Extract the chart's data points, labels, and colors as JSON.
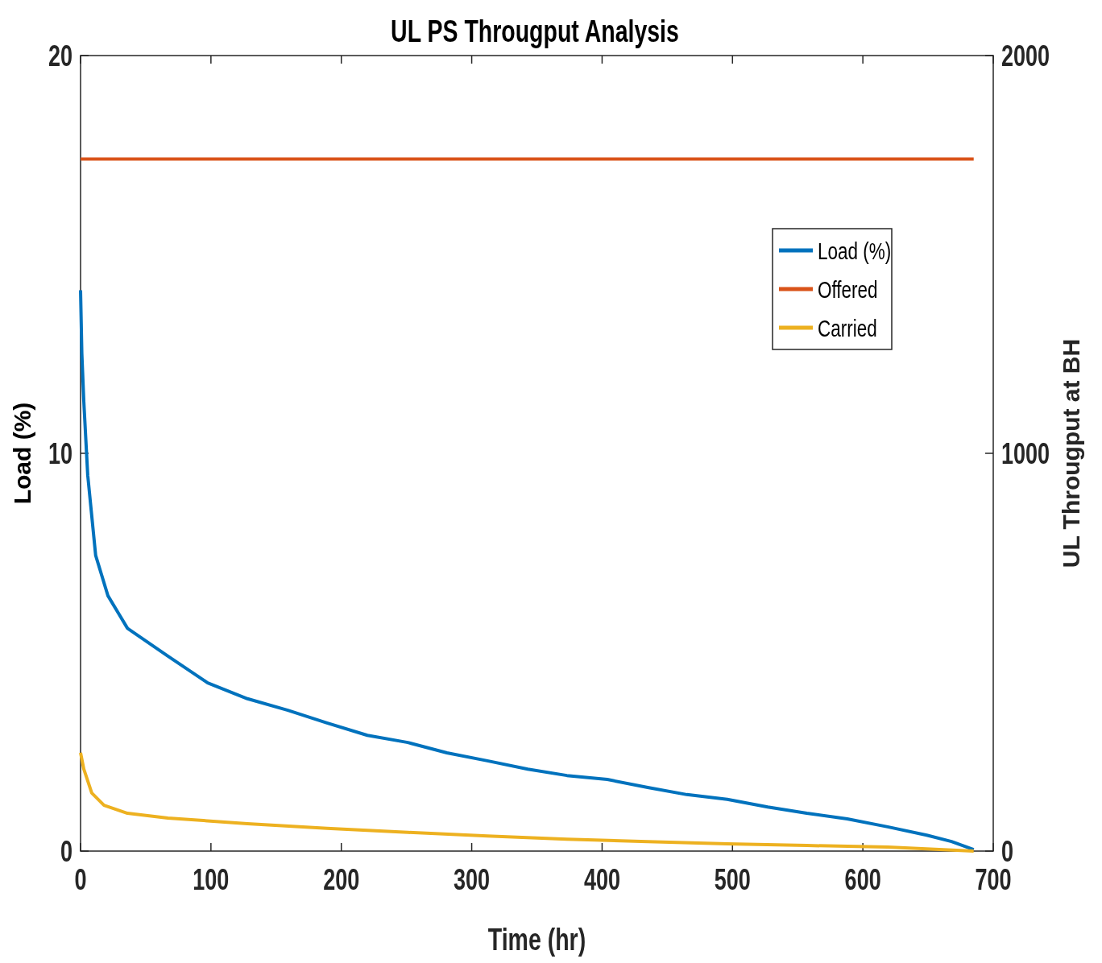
{
  "chart_data": {
    "type": "line",
    "title": "UL PS Througput Analysis",
    "xlabel": "Time (hr)",
    "ylabel": "Load (%)",
    "y2label": "UL Througput at BH",
    "xlim": [
      0,
      700
    ],
    "xticks": [
      0,
      100,
      200,
      300,
      400,
      500,
      600,
      700
    ],
    "ylim": [
      0,
      20
    ],
    "yticks": [
      0,
      10,
      20
    ],
    "y2lim": [
      0,
      2000
    ],
    "y2ticks": [
      0,
      1000,
      2000
    ],
    "grid": false,
    "legend": "top right",
    "line_style": "solid",
    "series": [
      {
        "name": "Load (%)",
        "color": "#0072bd",
        "axis": "y",
        "x": [
          0,
          1,
          2.5,
          5.5,
          11.6,
          21,
          36,
          67,
          97.5,
          128,
          159,
          189,
          220,
          251,
          281,
          312,
          343,
          373,
          404,
          435,
          465,
          496,
          527,
          557,
          588,
          619,
          649,
          668,
          685
        ],
        "values": [
          14.1,
          12.5,
          11.3,
          9.45,
          7.43,
          6.42,
          5.6,
          4.9,
          4.23,
          3.83,
          3.54,
          3.22,
          2.91,
          2.73,
          2.47,
          2.27,
          2.06,
          1.9,
          1.8,
          1.6,
          1.42,
          1.3,
          1.11,
          0.95,
          0.81,
          0.61,
          0.4,
          0.24,
          0.04
        ]
      },
      {
        "name": "Offered",
        "color": "#d95319",
        "axis": "y2",
        "x": [
          0,
          685
        ],
        "values": [
          1740,
          1740
        ]
      },
      {
        "name": "Carried",
        "color": "#edb120",
        "axis": "y2",
        "x": [
          0,
          2.5,
          8.6,
          18,
          36,
          67,
          128,
          189,
          251,
          312,
          373,
          435,
          496,
          557,
          619,
          685
        ],
        "values": [
          247,
          206,
          146,
          115,
          95,
          83,
          69,
          57,
          47,
          38,
          30,
          24,
          18,
          14,
          10,
          0
        ]
      }
    ]
  }
}
